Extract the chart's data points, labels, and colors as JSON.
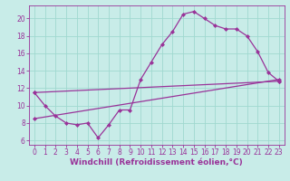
{
  "xlabel": "Windchill (Refroidissement éolien,°C)",
  "bg_color": "#c8ece8",
  "grid_color": "#a0d8d0",
  "line_color": "#993399",
  "marker": "D",
  "markersize": 2,
  "linewidth": 0.9,
  "xlim": [
    -0.5,
    23.5
  ],
  "ylim": [
    5.5,
    21.5
  ],
  "xticks": [
    0,
    1,
    2,
    3,
    4,
    5,
    6,
    7,
    8,
    9,
    10,
    11,
    12,
    13,
    14,
    15,
    16,
    17,
    18,
    19,
    20,
    21,
    22,
    23
  ],
  "yticks": [
    6,
    8,
    10,
    12,
    14,
    16,
    18,
    20
  ],
  "line1_x": [
    0,
    1,
    2,
    3,
    4,
    5,
    6,
    7,
    8,
    9,
    10,
    11,
    12,
    13,
    14,
    15,
    16,
    17,
    18,
    19,
    20,
    21,
    22,
    23
  ],
  "line1_y": [
    11.5,
    10.0,
    8.8,
    8.0,
    7.8,
    8.0,
    6.3,
    7.8,
    9.5,
    9.5,
    13.0,
    15.0,
    17.0,
    18.5,
    20.5,
    20.8,
    20.0,
    19.2,
    18.8,
    18.8,
    18.0,
    16.2,
    13.8,
    12.8
  ],
  "line2_x": [
    0,
    23
  ],
  "line2_y": [
    11.5,
    12.8
  ],
  "line3_x": [
    0,
    23
  ],
  "line3_y": [
    8.5,
    13.0
  ],
  "tick_fontsize": 5.5,
  "label_fontsize": 6.5,
  "tick_color": "#993399",
  "axis_color": "#993399",
  "label_fontweight": "bold"
}
